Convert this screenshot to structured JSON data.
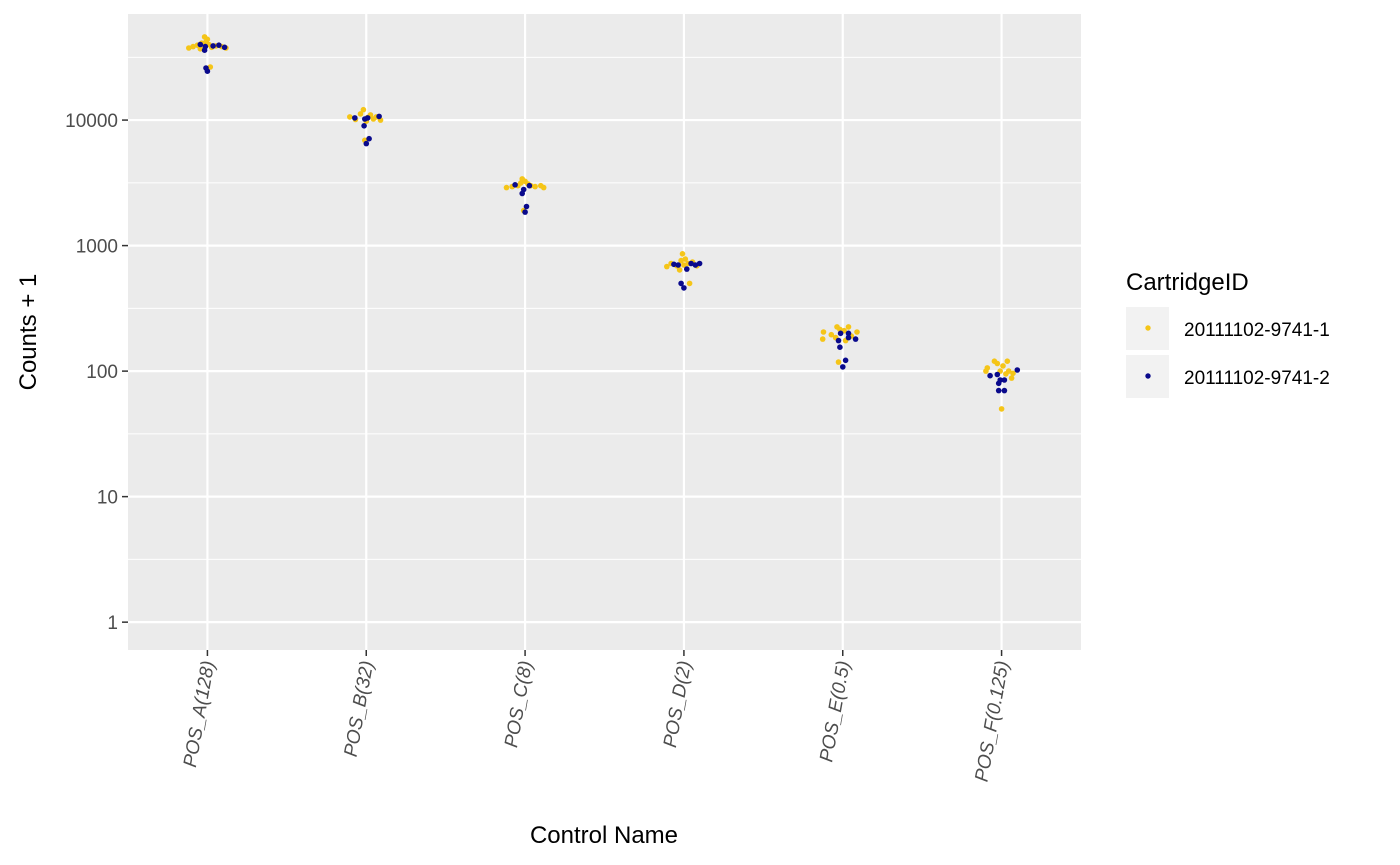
{
  "chart_data": {
    "type": "scatter",
    "subtype": "jitter-strip",
    "title": "",
    "xlabel": "Control Name",
    "ylabel": "Counts + 1",
    "y_scale": "log10",
    "ylim": [
      0.6,
      70000
    ],
    "y_ticks": [
      1,
      10,
      100,
      1000,
      10000
    ],
    "y_tick_labels": [
      "1",
      "10",
      "100",
      "1000",
      "10000"
    ],
    "categories": [
      "POS_A(128)",
      "POS_B(32)",
      "POS_C(8)",
      "POS_D(2)",
      "POS_E(0.5)",
      "POS_F(0.125)"
    ],
    "grid": true,
    "legend": {
      "title": "CartridgeID",
      "position": "right"
    },
    "series": [
      {
        "name": "20111102-9741-1",
        "color": "#f5c518",
        "points": [
          [
            "POS_A(128)",
            -0.26,
            37500
          ],
          [
            "POS_A(128)",
            -0.2,
            38500
          ],
          [
            "POS_A(128)",
            -0.14,
            39500
          ],
          [
            "POS_A(128)",
            -0.08,
            41000
          ],
          [
            "POS_A(128)",
            -0.04,
            46000
          ],
          [
            "POS_A(128)",
            -0.02,
            42000
          ],
          [
            "POS_A(128)",
            0.02,
            40000
          ],
          [
            "POS_A(128)",
            0.04,
            26500
          ],
          [
            "POS_A(128)",
            0.06,
            38000
          ],
          [
            "POS_A(128)",
            0.12,
            39000
          ],
          [
            "POS_A(128)",
            0.2,
            38500
          ],
          [
            "POS_A(128)",
            0.26,
            37500
          ],
          [
            "POS_A(128)",
            -0.1,
            37000
          ],
          [
            "POS_A(128)",
            0.0,
            44000
          ],
          [
            "POS_B(32)",
            -0.23,
            10600
          ],
          [
            "POS_B(32)",
            -0.15,
            10100
          ],
          [
            "POS_B(32)",
            -0.08,
            11200
          ],
          [
            "POS_B(32)",
            -0.04,
            12100
          ],
          [
            "POS_B(32)",
            -0.02,
            6900
          ],
          [
            "POS_B(32)",
            0.02,
            10500
          ],
          [
            "POS_B(32)",
            0.06,
            11000
          ],
          [
            "POS_B(32)",
            0.1,
            10200
          ],
          [
            "POS_B(32)",
            0.14,
            10600
          ],
          [
            "POS_B(32)",
            0.2,
            10000
          ],
          [
            "POS_B(32)",
            0.0,
            9800
          ],
          [
            "POS_C(8)",
            -0.26,
            2900
          ],
          [
            "POS_C(8)",
            -0.18,
            2950
          ],
          [
            "POS_C(8)",
            -0.1,
            3000
          ],
          [
            "POS_C(8)",
            -0.06,
            3150
          ],
          [
            "POS_C(8)",
            -0.04,
            3400
          ],
          [
            "POS_C(8)",
            -0.02,
            1900
          ],
          [
            "POS_C(8)",
            0.0,
            3250
          ],
          [
            "POS_C(8)",
            0.04,
            3100
          ],
          [
            "POS_C(8)",
            0.08,
            3000
          ],
          [
            "POS_C(8)",
            0.14,
            2950
          ],
          [
            "POS_C(8)",
            0.22,
            3000
          ],
          [
            "POS_C(8)",
            0.26,
            2900
          ],
          [
            "POS_D(2)",
            -0.24,
            680
          ],
          [
            "POS_D(2)",
            -0.18,
            720
          ],
          [
            "POS_D(2)",
            -0.06,
            640
          ],
          [
            "POS_D(2)",
            -0.04,
            760
          ],
          [
            "POS_D(2)",
            -0.02,
            860
          ],
          [
            "POS_D(2)",
            0.0,
            700
          ],
          [
            "POS_D(2)",
            0.02,
            780
          ],
          [
            "POS_D(2)",
            0.06,
            720
          ],
          [
            "POS_D(2)",
            0.08,
            500
          ],
          [
            "POS_D(2)",
            0.12,
            740
          ],
          [
            "POS_D(2)",
            0.18,
            690
          ],
          [
            "POS_D(2)",
            -0.1,
            690
          ],
          [
            "POS_E(0.5)",
            -0.28,
            180
          ],
          [
            "POS_E(0.5)",
            -0.27,
            205
          ],
          [
            "POS_E(0.5)",
            -0.16,
            195
          ],
          [
            "POS_E(0.5)",
            -0.1,
            185
          ],
          [
            "POS_E(0.5)",
            -0.08,
            225
          ],
          [
            "POS_E(0.5)",
            -0.04,
            215
          ],
          [
            "POS_E(0.5)",
            -0.06,
            118
          ],
          [
            "POS_E(0.5)",
            0.02,
            210
          ],
          [
            "POS_E(0.5)",
            0.04,
            175
          ],
          [
            "POS_E(0.5)",
            0.08,
            225
          ],
          [
            "POS_E(0.5)",
            0.12,
            190
          ],
          [
            "POS_E(0.5)",
            0.2,
            205
          ],
          [
            "POS_F(0.125)",
            -0.22,
            100
          ],
          [
            "POS_F(0.125)",
            -0.2,
            106
          ],
          [
            "POS_F(0.125)",
            -0.1,
            120
          ],
          [
            "POS_F(0.125)",
            -0.06,
            115
          ],
          [
            "POS_F(0.125)",
            -0.02,
            100
          ],
          [
            "POS_F(0.125)",
            0.0,
            50
          ],
          [
            "POS_F(0.125)",
            0.02,
            110
          ],
          [
            "POS_F(0.125)",
            0.06,
            95
          ],
          [
            "POS_F(0.125)",
            0.08,
            120
          ],
          [
            "POS_F(0.125)",
            0.1,
            100
          ],
          [
            "POS_F(0.125)",
            0.14,
            88
          ],
          [
            "POS_F(0.125)",
            0.16,
            96
          ]
        ]
      },
      {
        "name": "20111102-9741-2",
        "color": "#0a0a8c",
        "points": [
          [
            "POS_A(128)",
            -0.1,
            40000
          ],
          [
            "POS_A(128)",
            -0.04,
            36000
          ],
          [
            "POS_A(128)",
            -0.02,
            26000
          ],
          [
            "POS_A(128)",
            0.0,
            24500
          ],
          [
            "POS_A(128)",
            0.08,
            39000
          ],
          [
            "POS_A(128)",
            0.16,
            39500
          ],
          [
            "POS_A(128)",
            0.24,
            38000
          ],
          [
            "POS_A(128)",
            -0.03,
            38500
          ],
          [
            "POS_B(32)",
            -0.16,
            10400
          ],
          [
            "POS_B(32)",
            -0.02,
            10200
          ],
          [
            "POS_B(32)",
            -0.03,
            9000
          ],
          [
            "POS_B(32)",
            0.0,
            6500
          ],
          [
            "POS_B(32)",
            0.04,
            7100
          ],
          [
            "POS_B(32)",
            0.18,
            10700
          ],
          [
            "POS_B(32)",
            0.02,
            10400
          ],
          [
            "POS_C(8)",
            -0.14,
            3050
          ],
          [
            "POS_C(8)",
            -0.04,
            2600
          ],
          [
            "POS_C(8)",
            -0.02,
            2800
          ],
          [
            "POS_C(8)",
            0.0,
            1850
          ],
          [
            "POS_C(8)",
            0.02,
            2050
          ],
          [
            "POS_C(8)",
            0.06,
            3000
          ],
          [
            "POS_D(2)",
            -0.14,
            710
          ],
          [
            "POS_D(2)",
            -0.08,
            700
          ],
          [
            "POS_D(2)",
            -0.04,
            500
          ],
          [
            "POS_D(2)",
            0.0,
            460
          ],
          [
            "POS_D(2)",
            0.04,
            650
          ],
          [
            "POS_D(2)",
            0.1,
            720
          ],
          [
            "POS_D(2)",
            0.22,
            720
          ],
          [
            "POS_D(2)",
            0.16,
            700
          ],
          [
            "POS_E(0.5)",
            -0.06,
            175
          ],
          [
            "POS_E(0.5)",
            -0.04,
            155
          ],
          [
            "POS_E(0.5)",
            -0.03,
            200
          ],
          [
            "POS_E(0.5)",
            0.0,
            108
          ],
          [
            "POS_E(0.5)",
            0.04,
            122
          ],
          [
            "POS_E(0.5)",
            0.08,
            200
          ],
          [
            "POS_E(0.5)",
            0.18,
            180
          ],
          [
            "POS_E(0.5)",
            0.08,
            185
          ],
          [
            "POS_F(0.125)",
            -0.16,
            92
          ],
          [
            "POS_F(0.125)",
            -0.06,
            94
          ],
          [
            "POS_F(0.125)",
            -0.04,
            80
          ],
          [
            "POS_F(0.125)",
            -0.02,
            85
          ],
          [
            "POS_F(0.125)",
            -0.04,
            70
          ],
          [
            "POS_F(0.125)",
            0.04,
            85
          ],
          [
            "POS_F(0.125)",
            0.04,
            70
          ],
          [
            "POS_F(0.125)",
            0.22,
            102
          ]
        ]
      }
    ]
  }
}
